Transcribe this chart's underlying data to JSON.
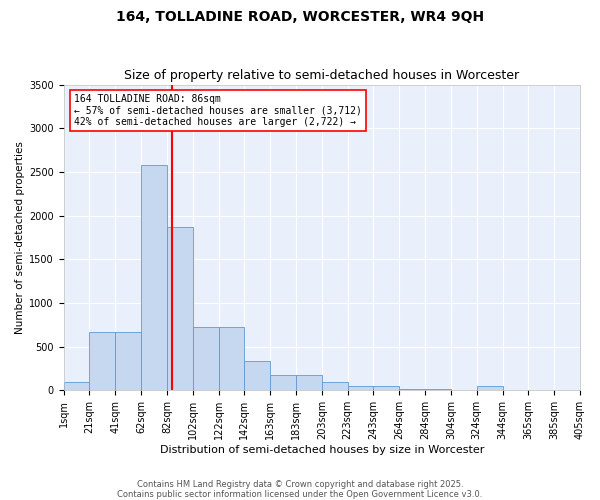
{
  "title": "164, TOLLADINE ROAD, WORCESTER, WR4 9QH",
  "subtitle": "Size of property relative to semi-detached houses in Worcester",
  "xlabel": "Distribution of semi-detached houses by size in Worcester",
  "ylabel": "Number of semi-detached properties",
  "bins": [
    "1sqm",
    "21sqm",
    "41sqm",
    "62sqm",
    "82sqm",
    "102sqm",
    "122sqm",
    "142sqm",
    "163sqm",
    "183sqm",
    "203sqm",
    "223sqm",
    "243sqm",
    "264sqm",
    "284sqm",
    "304sqm",
    "324sqm",
    "344sqm",
    "365sqm",
    "385sqm",
    "405sqm"
  ],
  "bar_heights": [
    90,
    670,
    670,
    2580,
    1870,
    720,
    720,
    340,
    170,
    170,
    90,
    50,
    50,
    10,
    10,
    0,
    50,
    0,
    0,
    0
  ],
  "bar_color": "#c5d8f0",
  "bar_edge_color": "#5b9bd5",
  "vline_color": "red",
  "annotation_text": "164 TOLLADINE ROAD: 86sqm\n← 57% of semi-detached houses are smaller (3,712)\n42% of semi-detached houses are larger (2,722) →",
  "annotation_box_color": "white",
  "annotation_box_edge": "red",
  "ylim": [
    0,
    3500
  ],
  "yticks": [
    0,
    500,
    1000,
    1500,
    2000,
    2500,
    3000,
    3500
  ],
  "background_color": "#eaf0fb",
  "grid_color": "white",
  "footer": "Contains HM Land Registry data © Crown copyright and database right 2025.\nContains public sector information licensed under the Open Government Licence v3.0.",
  "title_fontsize": 10,
  "subtitle_fontsize": 9,
  "xlabel_fontsize": 8,
  "ylabel_fontsize": 7.5,
  "tick_fontsize": 7,
  "footer_fontsize": 6,
  "annot_fontsize": 7
}
